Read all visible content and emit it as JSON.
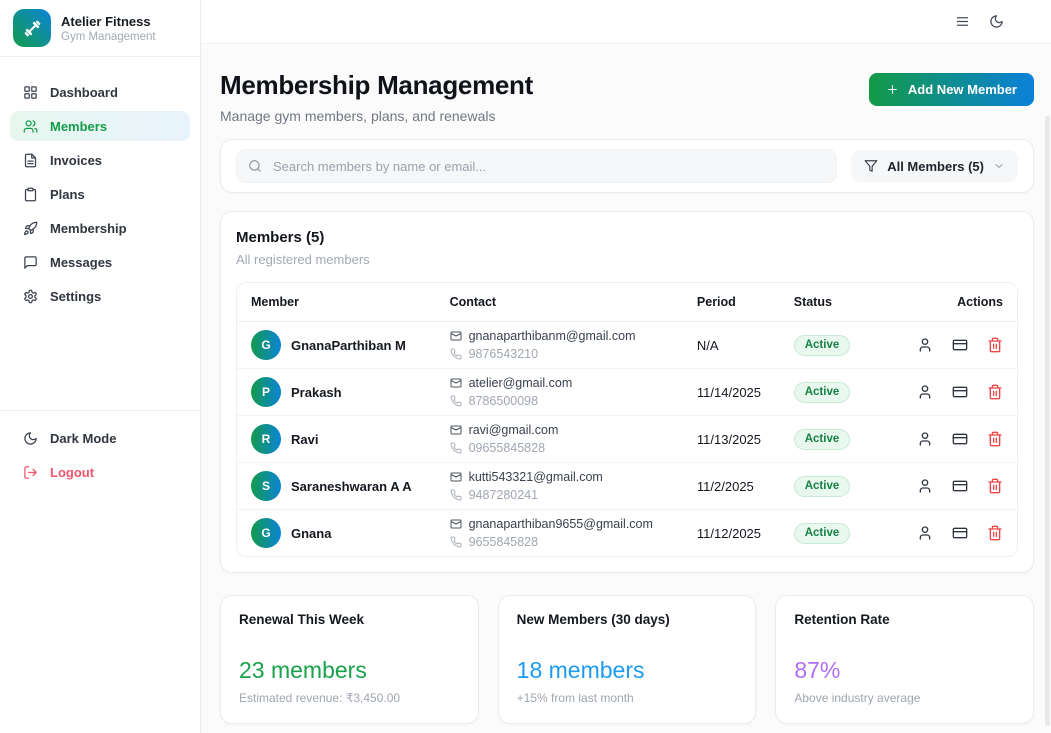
{
  "brand": {
    "name": "Atelier Fitness",
    "subtitle": "Gym Management",
    "logo_icon": "dumbbell-icon"
  },
  "topbar": {
    "icons": [
      "menu-icon",
      "moon-icon"
    ]
  },
  "sidebar": {
    "items": [
      {
        "label": "Dashboard",
        "icon": "grid-icon",
        "active": false
      },
      {
        "label": "Members",
        "icon": "users-icon",
        "active": true
      },
      {
        "label": "Invoices",
        "icon": "file-text-icon",
        "active": false
      },
      {
        "label": "Plans",
        "icon": "clipboard-icon",
        "active": false
      },
      {
        "label": "Membership",
        "icon": "rocket-icon",
        "active": false
      },
      {
        "label": "Messages",
        "icon": "message-icon",
        "active": false
      },
      {
        "label": "Settings",
        "icon": "gear-icon",
        "active": false
      }
    ],
    "footer": [
      {
        "label": "Dark Mode",
        "icon": "moon-icon",
        "variant": "default"
      },
      {
        "label": "Logout",
        "icon": "logout-icon",
        "variant": "danger"
      }
    ]
  },
  "page": {
    "title": "Membership Management",
    "subtitle": "Manage gym members, plans, and renewals",
    "add_member_button": "Add New Member"
  },
  "search": {
    "placeholder": "Search members by name or email...",
    "filter_label": "All Members (5)",
    "icons": [
      "search-icon",
      "funnel-icon",
      "chevron-down-icon"
    ]
  },
  "members": {
    "title": "Members (5)",
    "subtitle": "All registered members",
    "columns": [
      "Member",
      "Contact",
      "Period",
      "Status",
      "Actions"
    ],
    "action_icons": [
      "user-icon",
      "credit-card-icon",
      "trash-icon"
    ],
    "rows": [
      {
        "initial": "G",
        "name": "GnanaParthiban M",
        "email": "gnanaparthibanm@gmail.com",
        "phone": "9876543210",
        "period": "N/A",
        "status": "Active"
      },
      {
        "initial": "P",
        "name": "Prakash",
        "email": "atelier@gmail.com",
        "phone": "8786500098",
        "period": "11/14/2025",
        "status": "Active"
      },
      {
        "initial": "R",
        "name": "Ravi",
        "email": "ravi@gmail.com",
        "phone": "09655845828",
        "period": "11/13/2025",
        "status": "Active"
      },
      {
        "initial": "S",
        "name": "Saraneshwaran A A",
        "email": "kutti543321@gmail.com",
        "phone": "9487280241",
        "period": "11/2/2025",
        "status": "Active"
      },
      {
        "initial": "G",
        "name": "Gnana",
        "email": "gnanaparthiban9655@gmail.com",
        "phone": "9655845828",
        "period": "11/12/2025",
        "status": "Active"
      }
    ]
  },
  "stats": [
    {
      "title": "Renewal This Week",
      "value": "23 members",
      "subtitle": "Estimated revenue: ₹3,450.00",
      "color": "#16a34a"
    },
    {
      "title": "New Members (30 days)",
      "value": "18 members",
      "subtitle": "+15% from last month",
      "color": "#1d9bf0"
    },
    {
      "title": "Retention Rate",
      "value": "87%",
      "subtitle": "Above industry average",
      "color": "#b06ef5"
    }
  ],
  "colors": {
    "accent_green": "#149c4b",
    "accent_blue": "#0b84d8",
    "danger": "#ef4444",
    "logout": "#f3566c",
    "badge_bg": "#e9f8ef",
    "badge_text": "#178044",
    "active_nav_text": "#149c4b"
  }
}
